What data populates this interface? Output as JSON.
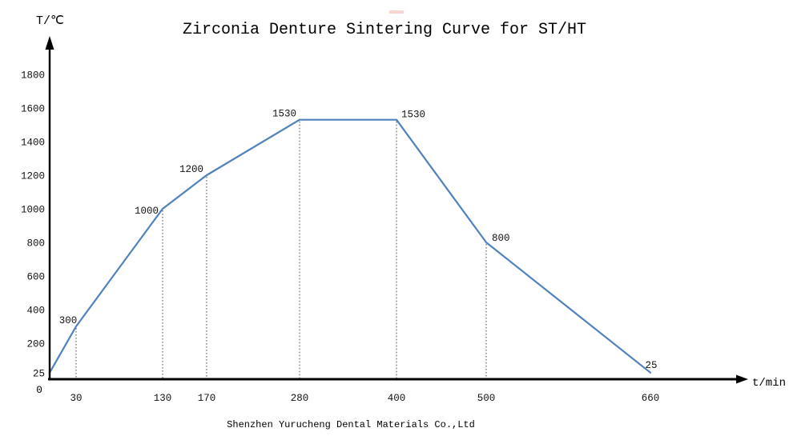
{
  "page": {
    "title": "Zirconia Denture Sintering Curve for ST/HT",
    "footer": "Shenzhen Yurucheng Dental Materials Co.,Ltd"
  },
  "chart_data": {
    "type": "line",
    "title": "Zirconia Denture Sintering Curve for ST/HT",
    "xlabel": "t/min",
    "ylabel": "T/℃",
    "origin_label": "0",
    "x": [
      0,
      30,
      130,
      170,
      280,
      400,
      500,
      660
    ],
    "y": [
      25,
      300,
      1000,
      1200,
      1530,
      1530,
      800,
      25
    ],
    "point_labels": [
      "",
      "300",
      "1000",
      "1200",
      "1530",
      "1530",
      "800",
      "25"
    ],
    "x_ticks": [
      30,
      130,
      170,
      280,
      400,
      500,
      660
    ],
    "y_ticks": [
      25,
      200,
      400,
      600,
      800,
      1000,
      1200,
      1400,
      1600,
      1800
    ],
    "dropline_x": [
      30,
      130,
      170,
      280,
      400,
      500
    ],
    "xlim": [
      0,
      760
    ],
    "ylim": [
      0,
      1900
    ],
    "grid": false,
    "legend": "none",
    "line_color": "#4F81BD",
    "axis_color": "#000000",
    "dropline_color": "#444444"
  }
}
